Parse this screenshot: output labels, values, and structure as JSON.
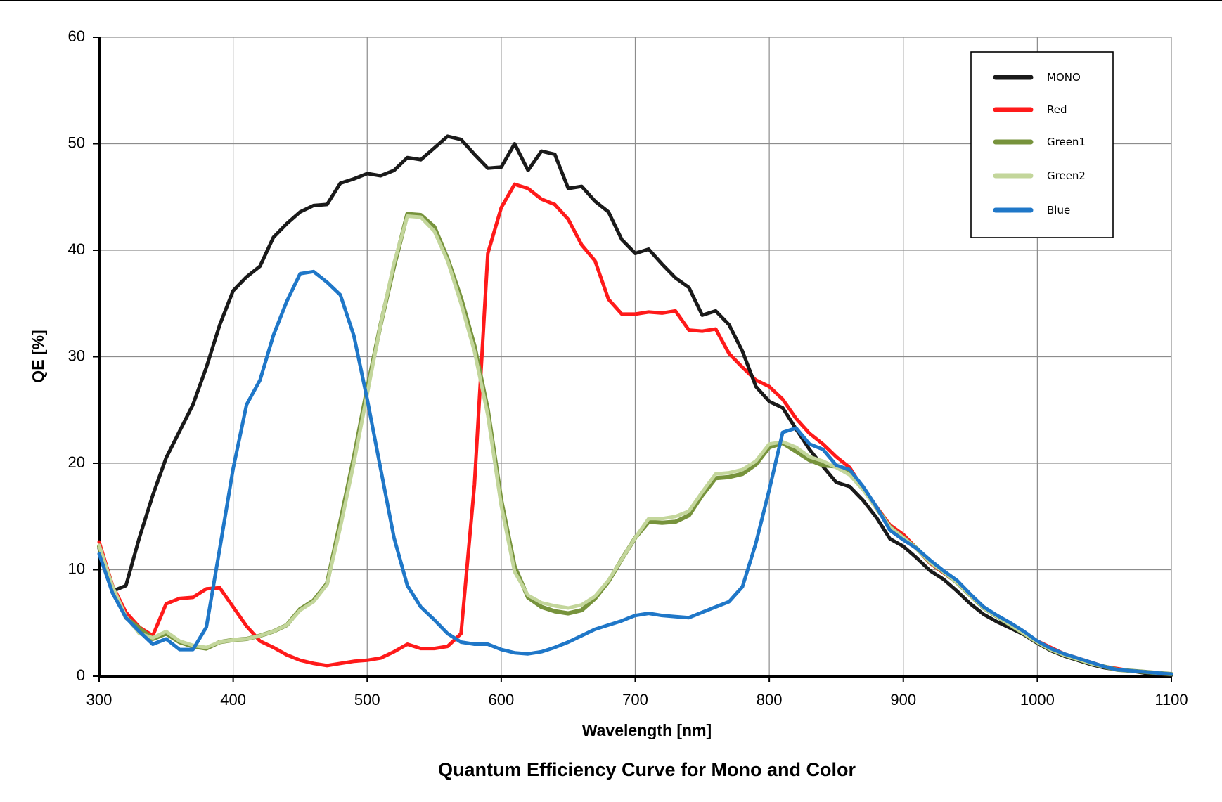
{
  "chart_data": {
    "type": "line",
    "title": "Quantum Efficiency Curve for Mono and Color",
    "xlabel": "Wavelength [nm]",
    "ylabel": "QE [%]",
    "xlim": [
      300,
      1100
    ],
    "ylim": [
      0,
      60
    ],
    "x_ticks": [
      300,
      400,
      500,
      600,
      700,
      800,
      900,
      1000,
      1100
    ],
    "y_ticks": [
      0,
      10,
      20,
      30,
      40,
      50,
      60
    ],
    "grid": true,
    "legend_position": "top-right",
    "x": [
      300,
      310,
      320,
      330,
      340,
      350,
      360,
      370,
      380,
      390,
      400,
      410,
      420,
      430,
      440,
      450,
      460,
      470,
      480,
      490,
      500,
      510,
      520,
      530,
      540,
      550,
      560,
      570,
      580,
      590,
      600,
      610,
      620,
      630,
      640,
      650,
      660,
      670,
      680,
      690,
      700,
      710,
      720,
      730,
      740,
      750,
      760,
      770,
      780,
      790,
      800,
      810,
      820,
      830,
      840,
      850,
      860,
      870,
      880,
      890,
      900,
      910,
      920,
      930,
      940,
      950,
      960,
      970,
      980,
      990,
      1000,
      1010,
      1020,
      1030,
      1040,
      1050,
      1060,
      1070,
      1080,
      1090,
      1100
    ],
    "series": [
      {
        "name": "MONO",
        "color": "#1a1a1a",
        "values": [
          12.0,
          8.0,
          8.5,
          13.0,
          17.0,
          20.5,
          23.0,
          25.5,
          29.0,
          33.0,
          36.2,
          37.5,
          38.5,
          41.2,
          42.5,
          43.6,
          44.2,
          44.3,
          46.3,
          46.7,
          47.2,
          47.0,
          47.5,
          48.7,
          48.5,
          49.6,
          50.7,
          50.4,
          49.0,
          47.7,
          47.8,
          50.0,
          47.5,
          49.3,
          49.0,
          45.8,
          46.0,
          44.6,
          43.6,
          41.0,
          39.7,
          40.1,
          38.7,
          37.4,
          36.5,
          33.9,
          34.3,
          33.0,
          30.5,
          27.2,
          25.8,
          25.2,
          23.2,
          21.3,
          19.7,
          18.2,
          17.8,
          16.5,
          14.9,
          12.9,
          12.2,
          11.1,
          9.9,
          9.1,
          8.0,
          6.8,
          5.8,
          5.1,
          4.5,
          3.9,
          3.1,
          2.4,
          1.9,
          1.5,
          1.1,
          0.8,
          0.6,
          0.5,
          0.3,
          0.2,
          0.1
        ]
      },
      {
        "name": "Red",
        "color": "#ff1a1a",
        "values": [
          12.6,
          8.5,
          6.0,
          4.6,
          3.8,
          6.8,
          7.3,
          7.4,
          8.2,
          8.3,
          6.5,
          4.7,
          3.3,
          2.7,
          2.0,
          1.5,
          1.2,
          1.0,
          1.2,
          1.4,
          1.5,
          1.7,
          2.3,
          3.0,
          2.6,
          2.6,
          2.8,
          4.0,
          18.0,
          39.7,
          44.0,
          46.2,
          45.8,
          44.8,
          44.3,
          42.9,
          40.5,
          39.0,
          35.4,
          34.0,
          34.0,
          34.2,
          34.1,
          34.3,
          32.5,
          32.4,
          32.6,
          30.3,
          29.0,
          27.8,
          27.2,
          26.0,
          24.2,
          22.8,
          21.8,
          20.6,
          19.6,
          17.6,
          15.9,
          14.2,
          13.3,
          12.0,
          10.6,
          9.7,
          8.8,
          7.6,
          6.5,
          5.6,
          4.8,
          4.0,
          3.3,
          2.7,
          2.1,
          1.7,
          1.3,
          0.9,
          0.7,
          0.5,
          0.4,
          0.3,
          0.2
        ]
      },
      {
        "name": "Green1",
        "color": "#77933c",
        "values": [
          12.2,
          8.3,
          5.5,
          4.5,
          3.5,
          4.0,
          3.2,
          2.8,
          2.6,
          3.2,
          3.4,
          3.5,
          3.8,
          4.2,
          4.8,
          6.3,
          7.1,
          8.7,
          14.5,
          20.5,
          27.0,
          33.0,
          38.5,
          43.4,
          43.3,
          42.2,
          39.2,
          35.5,
          31.0,
          25.0,
          16.5,
          10.3,
          7.4,
          6.5,
          6.1,
          5.9,
          6.2,
          7.3,
          8.9,
          11.0,
          13.0,
          14.5,
          14.4,
          14.5,
          15.1,
          17.0,
          18.6,
          18.7,
          19.0,
          19.9,
          21.5,
          21.9,
          21.1,
          20.3,
          19.8,
          19.7,
          19.0,
          17.6,
          15.8,
          14.0,
          13.0,
          12.0,
          10.7,
          9.8,
          8.8,
          7.6,
          6.4,
          5.6,
          4.8,
          4.0,
          3.2,
          2.5,
          2.0,
          1.6,
          1.2,
          0.9,
          0.6,
          0.5,
          0.4,
          0.3,
          0.2
        ]
      },
      {
        "name": "Green2",
        "color": "#c3d69b",
        "values": [
          12.3,
          8.4,
          5.6,
          4.0,
          3.6,
          4.2,
          3.3,
          2.9,
          2.7,
          3.2,
          3.4,
          3.5,
          3.8,
          4.2,
          4.8,
          6.2,
          7.0,
          8.6,
          14.0,
          20.0,
          26.5,
          33.0,
          38.8,
          43.2,
          43.1,
          41.8,
          39.0,
          35.0,
          30.5,
          24.5,
          16.0,
          9.8,
          7.6,
          6.9,
          6.6,
          6.4,
          6.7,
          7.5,
          9.0,
          11.0,
          13.0,
          14.8,
          14.8,
          15.0,
          15.5,
          17.3,
          19.0,
          19.1,
          19.4,
          20.2,
          21.8,
          22.0,
          21.5,
          20.6,
          20.2,
          19.6,
          18.9,
          17.5,
          15.8,
          14.0,
          13.0,
          12.0,
          10.7,
          9.8,
          8.8,
          7.6,
          6.4,
          5.6,
          4.8,
          4.0,
          3.2,
          2.5,
          2.0,
          1.6,
          1.2,
          0.9,
          0.6,
          0.5,
          0.4,
          0.3,
          0.2
        ]
      },
      {
        "name": "Blue",
        "color": "#1f77c8",
        "values": [
          11.5,
          7.8,
          5.5,
          4.2,
          3.0,
          3.5,
          2.5,
          2.5,
          4.6,
          12.0,
          19.5,
          25.5,
          27.8,
          32.0,
          35.2,
          37.8,
          38.0,
          37.0,
          35.8,
          32.0,
          26.0,
          19.5,
          13.0,
          8.5,
          6.5,
          5.3,
          4.0,
          3.2,
          3.0,
          3.0,
          2.5,
          2.2,
          2.1,
          2.3,
          2.7,
          3.2,
          3.8,
          4.4,
          4.8,
          5.2,
          5.7,
          5.9,
          5.7,
          5.6,
          5.5,
          6.0,
          6.5,
          7.0,
          8.4,
          12.5,
          17.5,
          22.9,
          23.3,
          21.8,
          21.3,
          19.8,
          19.4,
          17.8,
          15.9,
          13.7,
          12.8,
          12.0,
          10.9,
          9.9,
          9.0,
          7.7,
          6.5,
          5.7,
          5.0,
          4.2,
          3.3,
          2.6,
          2.1,
          1.7,
          1.3,
          0.9,
          0.6,
          0.5,
          0.4,
          0.3,
          0.2
        ]
      }
    ]
  }
}
